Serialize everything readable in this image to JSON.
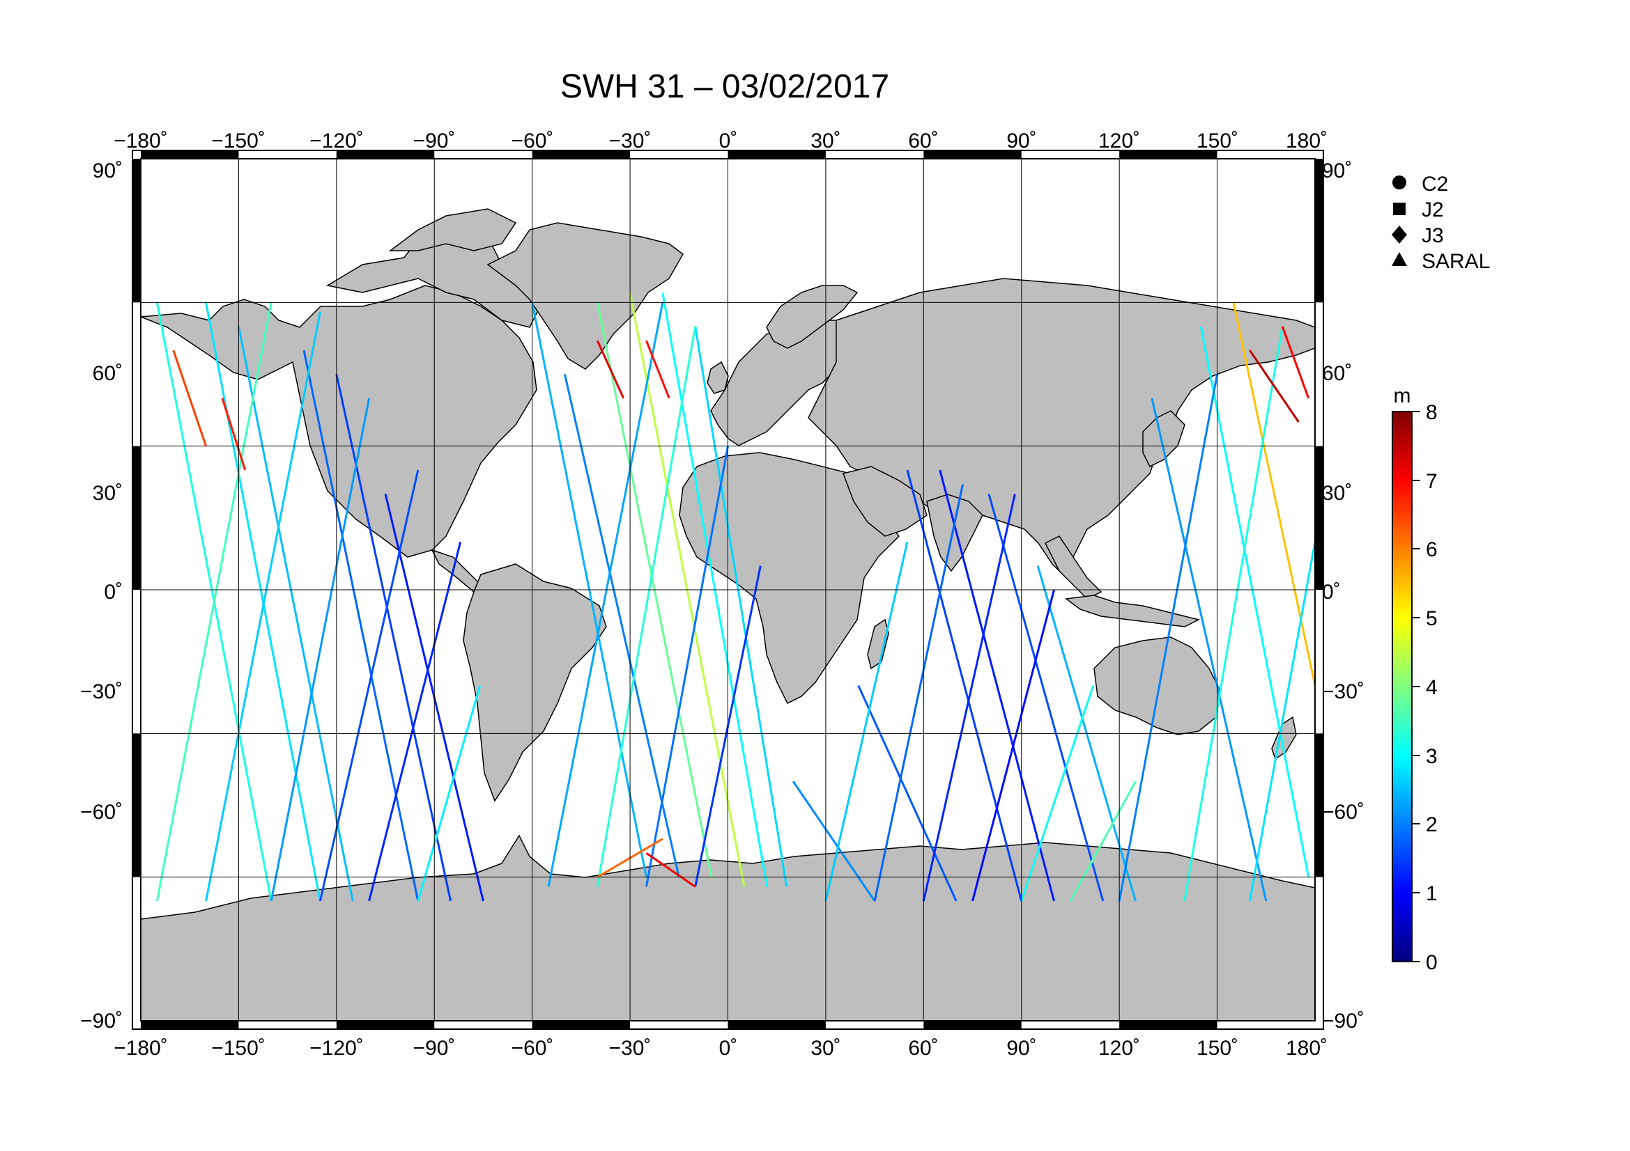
{
  "chart_data": {
    "type": "scatter",
    "title": "SWH 31 – 03/02/2017",
    "x_ticks": [
      "−180˚",
      "−150˚",
      "−120˚",
      "−90˚",
      "−60˚",
      "−30˚",
      "0˚",
      "30˚",
      "60˚",
      "90˚",
      "120˚",
      "150˚",
      "180˚"
    ],
    "y_ticks_left": [
      "90˚",
      "60˚",
      "30˚",
      "0˚",
      "−30˚",
      "−60˚",
      "−90˚"
    ],
    "y_ticks_right": [
      "90˚",
      "60˚",
      "30˚",
      "0˚",
      "−30˚",
      "−60˚",
      "−90˚"
    ],
    "x_tick_values": [
      -180,
      -150,
      -120,
      -90,
      -60,
      -30,
      0,
      30,
      60,
      90,
      120,
      150,
      180
    ],
    "y_tick_values": [
      90,
      60,
      30,
      0,
      -30,
      -60,
      -90
    ],
    "xlim": [
      -180,
      180
    ],
    "ylim": [
      -90,
      90
    ],
    "grid": true,
    "land_color": "#bebebe",
    "legend_position": "top-right",
    "legend": [
      {
        "label": "C2",
        "marker": "circle"
      },
      {
        "label": "J2",
        "marker": "square"
      },
      {
        "label": "J3",
        "marker": "diamond"
      },
      {
        "label": "SARAL",
        "marker": "triangle"
      }
    ],
    "colorbar": {
      "unit": "m",
      "min": 0,
      "max": 8,
      "ticks": [
        "8",
        "7",
        "6",
        "5",
        "4",
        "3",
        "2",
        "1",
        "0"
      ],
      "colormap": "jet"
    },
    "tracks": [
      {
        "lon1": -175,
        "lat1": 60,
        "lon2": -140,
        "lat2": -65,
        "swh": 3.2
      },
      {
        "lon1": -160,
        "lat1": 60,
        "lon2": -125,
        "lat2": -65,
        "swh": 2.8
      },
      {
        "lon1": -150,
        "lat1": 55,
        "lon2": -115,
        "lat2": -65,
        "swh": 2.5
      },
      {
        "lon1": -130,
        "lat1": 50,
        "lon2": -95,
        "lat2": -65,
        "swh": 1.8
      },
      {
        "lon1": -120,
        "lat1": 45,
        "lon2": -85,
        "lat2": -65,
        "swh": 1.5
      },
      {
        "lon1": -105,
        "lat1": 20,
        "lon2": -75,
        "lat2": -65,
        "swh": 1.2
      },
      {
        "lon1": -175,
        "lat1": -65,
        "lon2": -140,
        "lat2": 60,
        "swh": 3.5
      },
      {
        "lon1": -160,
        "lat1": -65,
        "lon2": -125,
        "lat2": 58,
        "swh": 2.6
      },
      {
        "lon1": -140,
        "lat1": -65,
        "lon2": -110,
        "lat2": 40,
        "swh": 2.2
      },
      {
        "lon1": -125,
        "lat1": -65,
        "lon2": -95,
        "lat2": 25,
        "swh": 1.6
      },
      {
        "lon1": -110,
        "lat1": -65,
        "lon2": -82,
        "lat2": 10,
        "swh": 1.3
      },
      {
        "lon1": -95,
        "lat1": -65,
        "lon2": -76,
        "lat2": -20,
        "swh": 2.9
      },
      {
        "lon1": -60,
        "lat1": 60,
        "lon2": -25,
        "lat2": -60,
        "swh": 2.4
      },
      {
        "lon1": -50,
        "lat1": 45,
        "lon2": -15,
        "lat2": -60,
        "swh": 2.0
      },
      {
        "lon1": -40,
        "lat1": 60,
        "lon2": -5,
        "lat2": -60,
        "swh": 3.8
      },
      {
        "lon1": -30,
        "lat1": 62,
        "lon2": 5,
        "lat2": -62,
        "swh": 4.5
      },
      {
        "lon1": -20,
        "lat1": 62,
        "lon2": 12,
        "lat2": -62,
        "swh": 3.0
      },
      {
        "lon1": -10,
        "lat1": 55,
        "lon2": 18,
        "lat2": -62,
        "swh": 2.7
      },
      {
        "lon1": -55,
        "lat1": -62,
        "lon2": -20,
        "lat2": 60,
        "swh": 2.3
      },
      {
        "lon1": -40,
        "lat1": -62,
        "lon2": -10,
        "lat2": 55,
        "swh": 3.3
      },
      {
        "lon1": -25,
        "lat1": -62,
        "lon2": 0,
        "lat2": 30,
        "swh": 1.9
      },
      {
        "lon1": -10,
        "lat1": -62,
        "lon2": 10,
        "lat2": 5,
        "swh": 1.4
      },
      {
        "lon1": 20,
        "lat1": -40,
        "lon2": 45,
        "lat2": -65,
        "swh": 2.1
      },
      {
        "lon1": 40,
        "lat1": -20,
        "lon2": 70,
        "lat2": -65,
        "swh": 1.7
      },
      {
        "lon1": 55,
        "lat1": 25,
        "lon2": 90,
        "lat2": -65,
        "swh": 1.5
      },
      {
        "lon1": 65,
        "lat1": 25,
        "lon2": 100,
        "lat2": -65,
        "swh": 1.2
      },
      {
        "lon1": 80,
        "lat1": 20,
        "lon2": 115,
        "lat2": -65,
        "swh": 1.6
      },
      {
        "lon1": 95,
        "lat1": 5,
        "lon2": 125,
        "lat2": -65,
        "swh": 2.4
      },
      {
        "lon1": 30,
        "lat1": -65,
        "lon2": 55,
        "lat2": 10,
        "swh": 2.6
      },
      {
        "lon1": 45,
        "lat1": -65,
        "lon2": 72,
        "lat2": 22,
        "swh": 1.8
      },
      {
        "lon1": 60,
        "lat1": -65,
        "lon2": 88,
        "lat2": 20,
        "swh": 1.3
      },
      {
        "lon1": 75,
        "lat1": -65,
        "lon2": 100,
        "lat2": 0,
        "swh": 1.1
      },
      {
        "lon1": 90,
        "lat1": -65,
        "lon2": 112,
        "lat2": -20,
        "swh": 3.1
      },
      {
        "lon1": 105,
        "lat1": -65,
        "lon2": 125,
        "lat2": -40,
        "swh": 3.6
      },
      {
        "lon1": 130,
        "lat1": 40,
        "lon2": 165,
        "lat2": -65,
        "swh": 2.2
      },
      {
        "lon1": 145,
        "lat1": 55,
        "lon2": 178,
        "lat2": -60,
        "swh": 3.0
      },
      {
        "lon1": 155,
        "lat1": 60,
        "lon2": 180,
        "lat2": -20,
        "swh": 5.5
      },
      {
        "lon1": 120,
        "lat1": -65,
        "lon2": 150,
        "lat2": 45,
        "swh": 2.0
      },
      {
        "lon1": 140,
        "lat1": -65,
        "lon2": 170,
        "lat2": 55,
        "swh": 3.2
      },
      {
        "lon1": 160,
        "lat1": -65,
        "lon2": 180,
        "lat2": 10,
        "swh": 2.8
      },
      {
        "lon1": 160,
        "lat1": 50,
        "lon2": 175,
        "lat2": 35,
        "swh": 7.5
      },
      {
        "lon1": 170,
        "lat1": 55,
        "lon2": 178,
        "lat2": 40,
        "swh": 7.0
      },
      {
        "lon1": -170,
        "lat1": 50,
        "lon2": -160,
        "lat2": 30,
        "swh": 6.5
      },
      {
        "lon1": -155,
        "lat1": 40,
        "lon2": -148,
        "lat2": 25,
        "swh": 6.8
      },
      {
        "lon1": -40,
        "lat1": 52,
        "lon2": -32,
        "lat2": 40,
        "swh": 7.2
      },
      {
        "lon1": -25,
        "lat1": 52,
        "lon2": -18,
        "lat2": 40,
        "swh": 6.9
      },
      {
        "lon1": -25,
        "lat1": -55,
        "lon2": -10,
        "lat2": -62,
        "swh": 7.1
      },
      {
        "lon1": -40,
        "lat1": -60,
        "lon2": -20,
        "lat2": -52,
        "swh": 6.2
      }
    ]
  }
}
